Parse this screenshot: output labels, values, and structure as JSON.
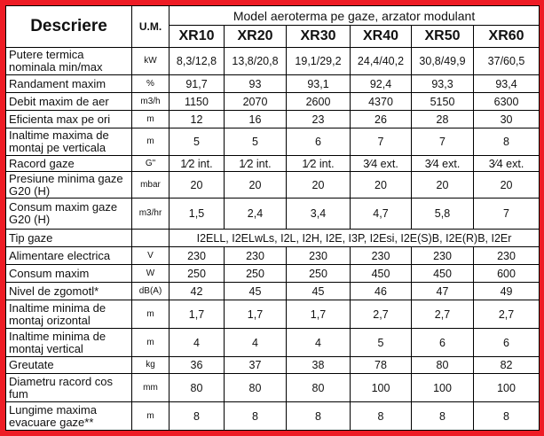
{
  "header": {
    "description": "Descriere",
    "unit": "U.M.",
    "model_group": "Model aeroterma pe gaze, arzator modulant",
    "models": [
      "XR10",
      "XR20",
      "XR30",
      "XR40",
      "XR50",
      "XR60"
    ]
  },
  "rows": [
    {
      "label": "Putere termica nominala min/max",
      "unit": "kW",
      "values": [
        "8,3/12,8",
        "13,8/20,8",
        "19,1/29,2",
        "24,4/40,2",
        "30,8/49,9",
        "37/60,5"
      ]
    },
    {
      "label": "Randament maxim",
      "unit": "%",
      "values": [
        "91,7",
        "93",
        "93,1",
        "92,4",
        "93,3",
        "93,4"
      ]
    },
    {
      "label": "Debit maxim de aer",
      "unit": "m3/h",
      "values": [
        "1150",
        "2070",
        "2600",
        "4370",
        "5150",
        "6300"
      ]
    },
    {
      "label": "Eficienta max pe ori",
      "unit": "m",
      "values": [
        "12",
        "16",
        "23",
        "26",
        "28",
        "30"
      ]
    },
    {
      "label": "Inaltime maxima de montaj pe verticala",
      "unit": "m",
      "values": [
        "5",
        "5",
        "6",
        "7",
        "7",
        "8"
      ]
    },
    {
      "label": "Racord gaze",
      "unit": "G\"",
      "values": [
        "1⁄2 int.",
        "1⁄2 int.",
        "1⁄2 int.",
        "3⁄4 ext.",
        "3⁄4 ext.",
        "3⁄4 ext."
      ]
    },
    {
      "label": "Presiune minima gaze G20 (H)",
      "unit": "mbar",
      "values": [
        "20",
        "20",
        "20",
        "20",
        "20",
        "20"
      ]
    },
    {
      "label": "Consum maxim gaze G20 (H)",
      "unit": "m3/hr",
      "values": [
        "1,5",
        "2,4",
        "3,4",
        "4,7",
        "5,8",
        "7"
      ]
    },
    {
      "label": "Tip gaze",
      "unit": "",
      "span": "I2ELL, I2ELwLs, I2L, I2H, I2E, I3P, I2Esi, I2E(S)B, I2E(R)B, I2Er"
    },
    {
      "label": "Alimentare electrica",
      "unit": "V",
      "values": [
        "230",
        "230",
        "230",
        "230",
        "230",
        "230"
      ]
    },
    {
      "label": "Consum maxim",
      "unit": "W",
      "values": [
        "250",
        "250",
        "250",
        "450",
        "450",
        "600"
      ]
    },
    {
      "label": "Nivel de zgomotl*",
      "unit": "dB(A)",
      "values": [
        "42",
        "45",
        "45",
        "46",
        "47",
        "49"
      ]
    },
    {
      "label": "Inaltime minima de montaj orizontal",
      "unit": "m",
      "values": [
        "1,7",
        "1,7",
        "1,7",
        "2,7",
        "2,7",
        "2,7"
      ]
    },
    {
      "label": "Inaltime minima de montaj vertical",
      "unit": "m",
      "values": [
        "4",
        "4",
        "4",
        "5",
        "6",
        "6"
      ]
    },
    {
      "label": "Greutate",
      "unit": "kg",
      "values": [
        "36",
        "37",
        "38",
        "78",
        "80",
        "82"
      ]
    },
    {
      "label": "Diametru racord cos fum",
      "unit": "mm",
      "values": [
        "80",
        "80",
        "80",
        "100",
        "100",
        "100"
      ]
    },
    {
      "label": "Lungime maxima evacuare gaze**",
      "unit": "m",
      "values": [
        "8",
        "8",
        "8",
        "8",
        "8",
        "8"
      ]
    }
  ]
}
